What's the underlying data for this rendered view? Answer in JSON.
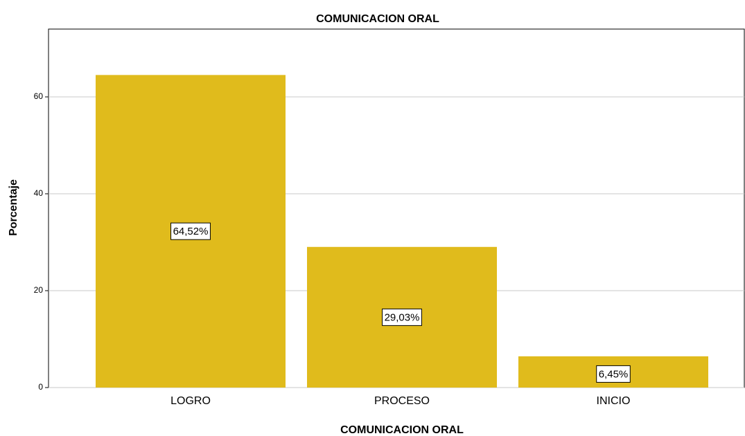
{
  "chart_data": {
    "type": "bar",
    "title": "COMUNICACION ORAL",
    "x_label": "COMUNICACION ORAL",
    "y_label": "Porcentaje",
    "categories": [
      "LOGRO",
      "PROCESO",
      "INICIO"
    ],
    "values": [
      64.52,
      29.03,
      6.45
    ],
    "value_labels": [
      "64,52%",
      "29,03%",
      "6,45%"
    ],
    "color": "#e0bb1c",
    "ylim": [
      0,
      74
    ],
    "yticks": [
      0,
      20,
      40,
      60
    ],
    "grid": true
  }
}
